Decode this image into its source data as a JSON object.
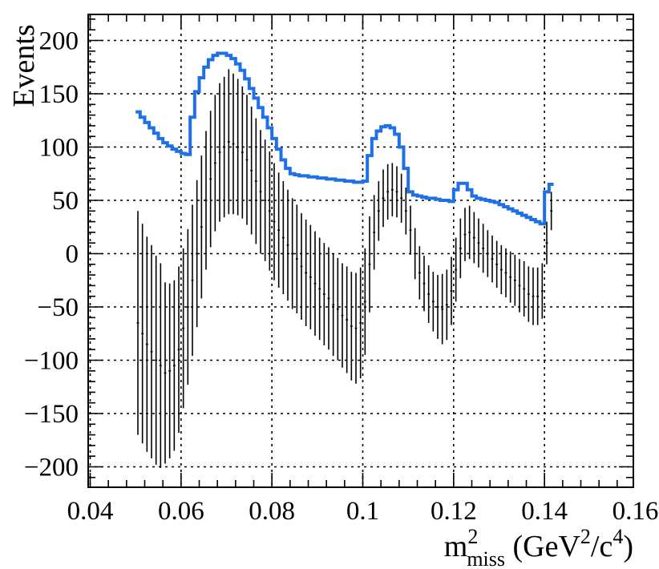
{
  "chart_data": {
    "type": "line",
    "title": "",
    "xlabel": "m²miss (GeV²/c⁴)",
    "xlabel_parts": {
      "main": "m",
      "sup": "2",
      "sub": "miss",
      "rest_open": " (GeV",
      "rest_sup": "2",
      "rest_mid": "/c",
      "rest_sup2": "4",
      "rest_close": ")"
    },
    "ylabel": "Events",
    "xlim": [
      0.04,
      0.16
    ],
    "ylim": [
      -220,
      220
    ],
    "xticks": [
      0.04,
      0.06,
      0.08,
      0.1,
      0.12,
      0.14,
      0.16
    ],
    "xtick_labels": [
      "0.04",
      "0.06",
      "0.08",
      "0.1",
      "0.12",
      "0.14",
      "0.16"
    ],
    "yticks": [
      -200,
      -150,
      -100,
      -50,
      0,
      50,
      100,
      150,
      200
    ],
    "ytick_labels": [
      "−200",
      "−150",
      "−100",
      "−50",
      "0",
      "50",
      "100",
      "150",
      "200"
    ],
    "grid": true,
    "bin_width": 0.001,
    "x": [
      0.0505,
      0.0515,
      0.0525,
      0.0535,
      0.0545,
      0.0555,
      0.0565,
      0.0575,
      0.0585,
      0.0595,
      0.0605,
      0.0615,
      0.0625,
      0.0635,
      0.0645,
      0.0655,
      0.0665,
      0.0675,
      0.0685,
      0.0695,
      0.0705,
      0.0715,
      0.0725,
      0.0735,
      0.0745,
      0.0755,
      0.0765,
      0.0775,
      0.0785,
      0.0795,
      0.0805,
      0.0815,
      0.0825,
      0.0835,
      0.0845,
      0.0855,
      0.0865,
      0.0875,
      0.0885,
      0.0895,
      0.0905,
      0.0915,
      0.0925,
      0.0935,
      0.0945,
      0.0955,
      0.0965,
      0.0975,
      0.0985,
      0.0995,
      0.1005,
      0.1015,
      0.1025,
      0.1035,
      0.1045,
      0.1055,
      0.1065,
      0.1075,
      0.1085,
      0.1095,
      0.1105,
      0.1115,
      0.1125,
      0.1135,
      0.1145,
      0.1155,
      0.1165,
      0.1175,
      0.1185,
      0.1195,
      0.1205,
      0.1215,
      0.1225,
      0.1235,
      0.1245,
      0.1255,
      0.1265,
      0.1275,
      0.1285,
      0.1295,
      0.1305,
      0.1315,
      0.1325,
      0.1335,
      0.1345,
      0.1355,
      0.1365,
      0.1375,
      0.1385,
      0.1395,
      0.1405,
      0.1415
    ],
    "series": [
      {
        "kind": "points-with-errors",
        "color": "#000000",
        "values": [
          -65,
          -75,
          -85,
          -92,
          -100,
          -105,
          -112,
          -110,
          -105,
          -90,
          -70,
          -50,
          -25,
          0,
          25,
          50,
          70,
          85,
          95,
          100,
          105,
          103,
          100,
          95,
          88,
          78,
          68,
          58,
          50,
          40,
          30,
          22,
          15,
          8,
          0,
          -5,
          -12,
          -18,
          -22,
          -28,
          -33,
          -38,
          -42,
          -48,
          -52,
          -58,
          -62,
          -68,
          -70,
          -65,
          -45,
          -10,
          20,
          40,
          52,
          58,
          60,
          58,
          52,
          40,
          22,
          0,
          -18,
          -28,
          -38,
          -45,
          -50,
          -52,
          -48,
          -35,
          -15,
          5,
          18,
          20,
          15,
          10,
          5,
          0,
          -5,
          -10,
          -15,
          -18,
          -22,
          -25,
          -30,
          -33,
          -38,
          -40,
          -40,
          -35,
          10,
          40
        ],
        "errors": [
          105,
          103,
          101,
          100,
          98,
          96,
          85,
          82,
          80,
          78,
          75,
          73,
          71,
          69,
          67,
          65,
          64,
          64,
          65,
          66,
          68,
          66,
          64,
          62,
          61,
          60,
          59,
          58,
          57,
          56,
          55,
          54,
          53,
          52,
          52,
          51,
          50,
          50,
          49,
          49,
          48,
          48,
          48,
          48,
          48,
          49,
          50,
          51,
          52,
          52,
          50,
          45,
          35,
          28,
          27,
          26,
          25,
          24,
          23,
          22,
          23,
          24,
          25,
          26,
          27,
          28,
          30,
          33,
          33,
          32,
          30,
          28,
          25,
          25,
          24,
          23,
          23,
          22,
          22,
          22,
          23,
          23,
          24,
          24,
          25,
          26,
          26,
          27,
          27,
          26,
          20,
          18
        ]
      },
      {
        "kind": "step",
        "color": "#1f6fe8",
        "values": [
          133,
          128,
          123,
          118,
          113,
          108,
          104,
          101,
          98,
          96,
          94,
          93,
          128,
          152,
          165,
          175,
          182,
          186,
          188,
          188,
          186,
          183,
          178,
          172,
          164,
          155,
          146,
          137,
          128,
          118,
          108,
          98,
          88,
          80,
          75,
          74,
          73,
          73,
          72,
          72,
          71,
          71,
          70,
          70,
          69,
          69,
          68,
          68,
          67,
          67,
          68,
          92,
          108,
          115,
          119,
          120,
          118,
          112,
          100,
          80,
          58,
          55,
          54,
          53,
          52,
          52,
          51,
          50,
          50,
          49,
          60,
          66,
          66,
          60,
          54,
          52,
          51,
          50,
          49,
          48,
          46,
          44,
          42,
          40,
          38,
          36,
          34,
          32,
          30,
          28,
          58,
          65
        ]
      }
    ]
  }
}
